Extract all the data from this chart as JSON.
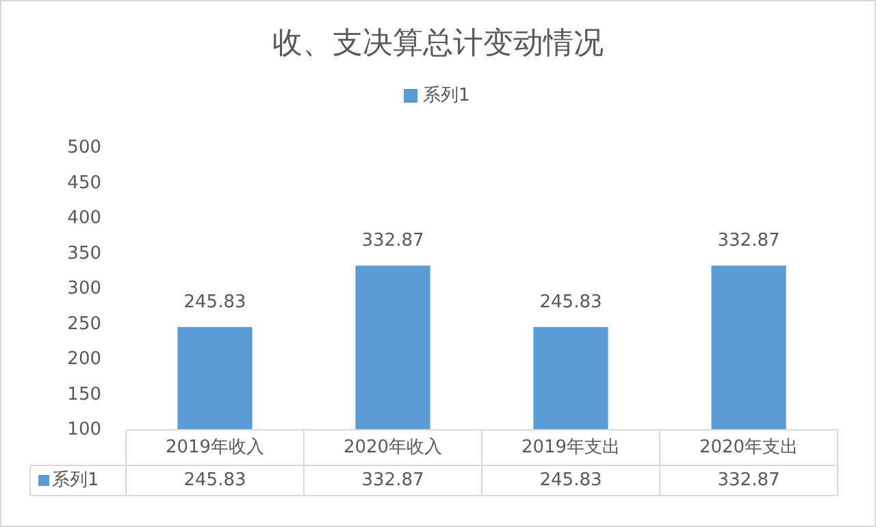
{
  "chart_data": {
    "type": "bar",
    "title": "收、支决算总计变动情况",
    "categories": [
      "2019年收入",
      "2020年收入",
      "2019年支出",
      "2020年支出"
    ],
    "series": [
      {
        "name": "系列1",
        "color": "#5b9bd5",
        "values": [
          245.83,
          332.87,
          245.83,
          332.87
        ],
        "value_labels": [
          "245.83",
          "332.87",
          "245.83",
          "332.87"
        ]
      }
    ],
    "ylim": [
      100,
      500
    ],
    "yticks": [
      100,
      150,
      200,
      250,
      300,
      350,
      400,
      450,
      500
    ],
    "annotations": [
      "系列1",
      "245.83",
      "332.87",
      "245.83",
      "332.87"
    ],
    "legend": "top"
  }
}
